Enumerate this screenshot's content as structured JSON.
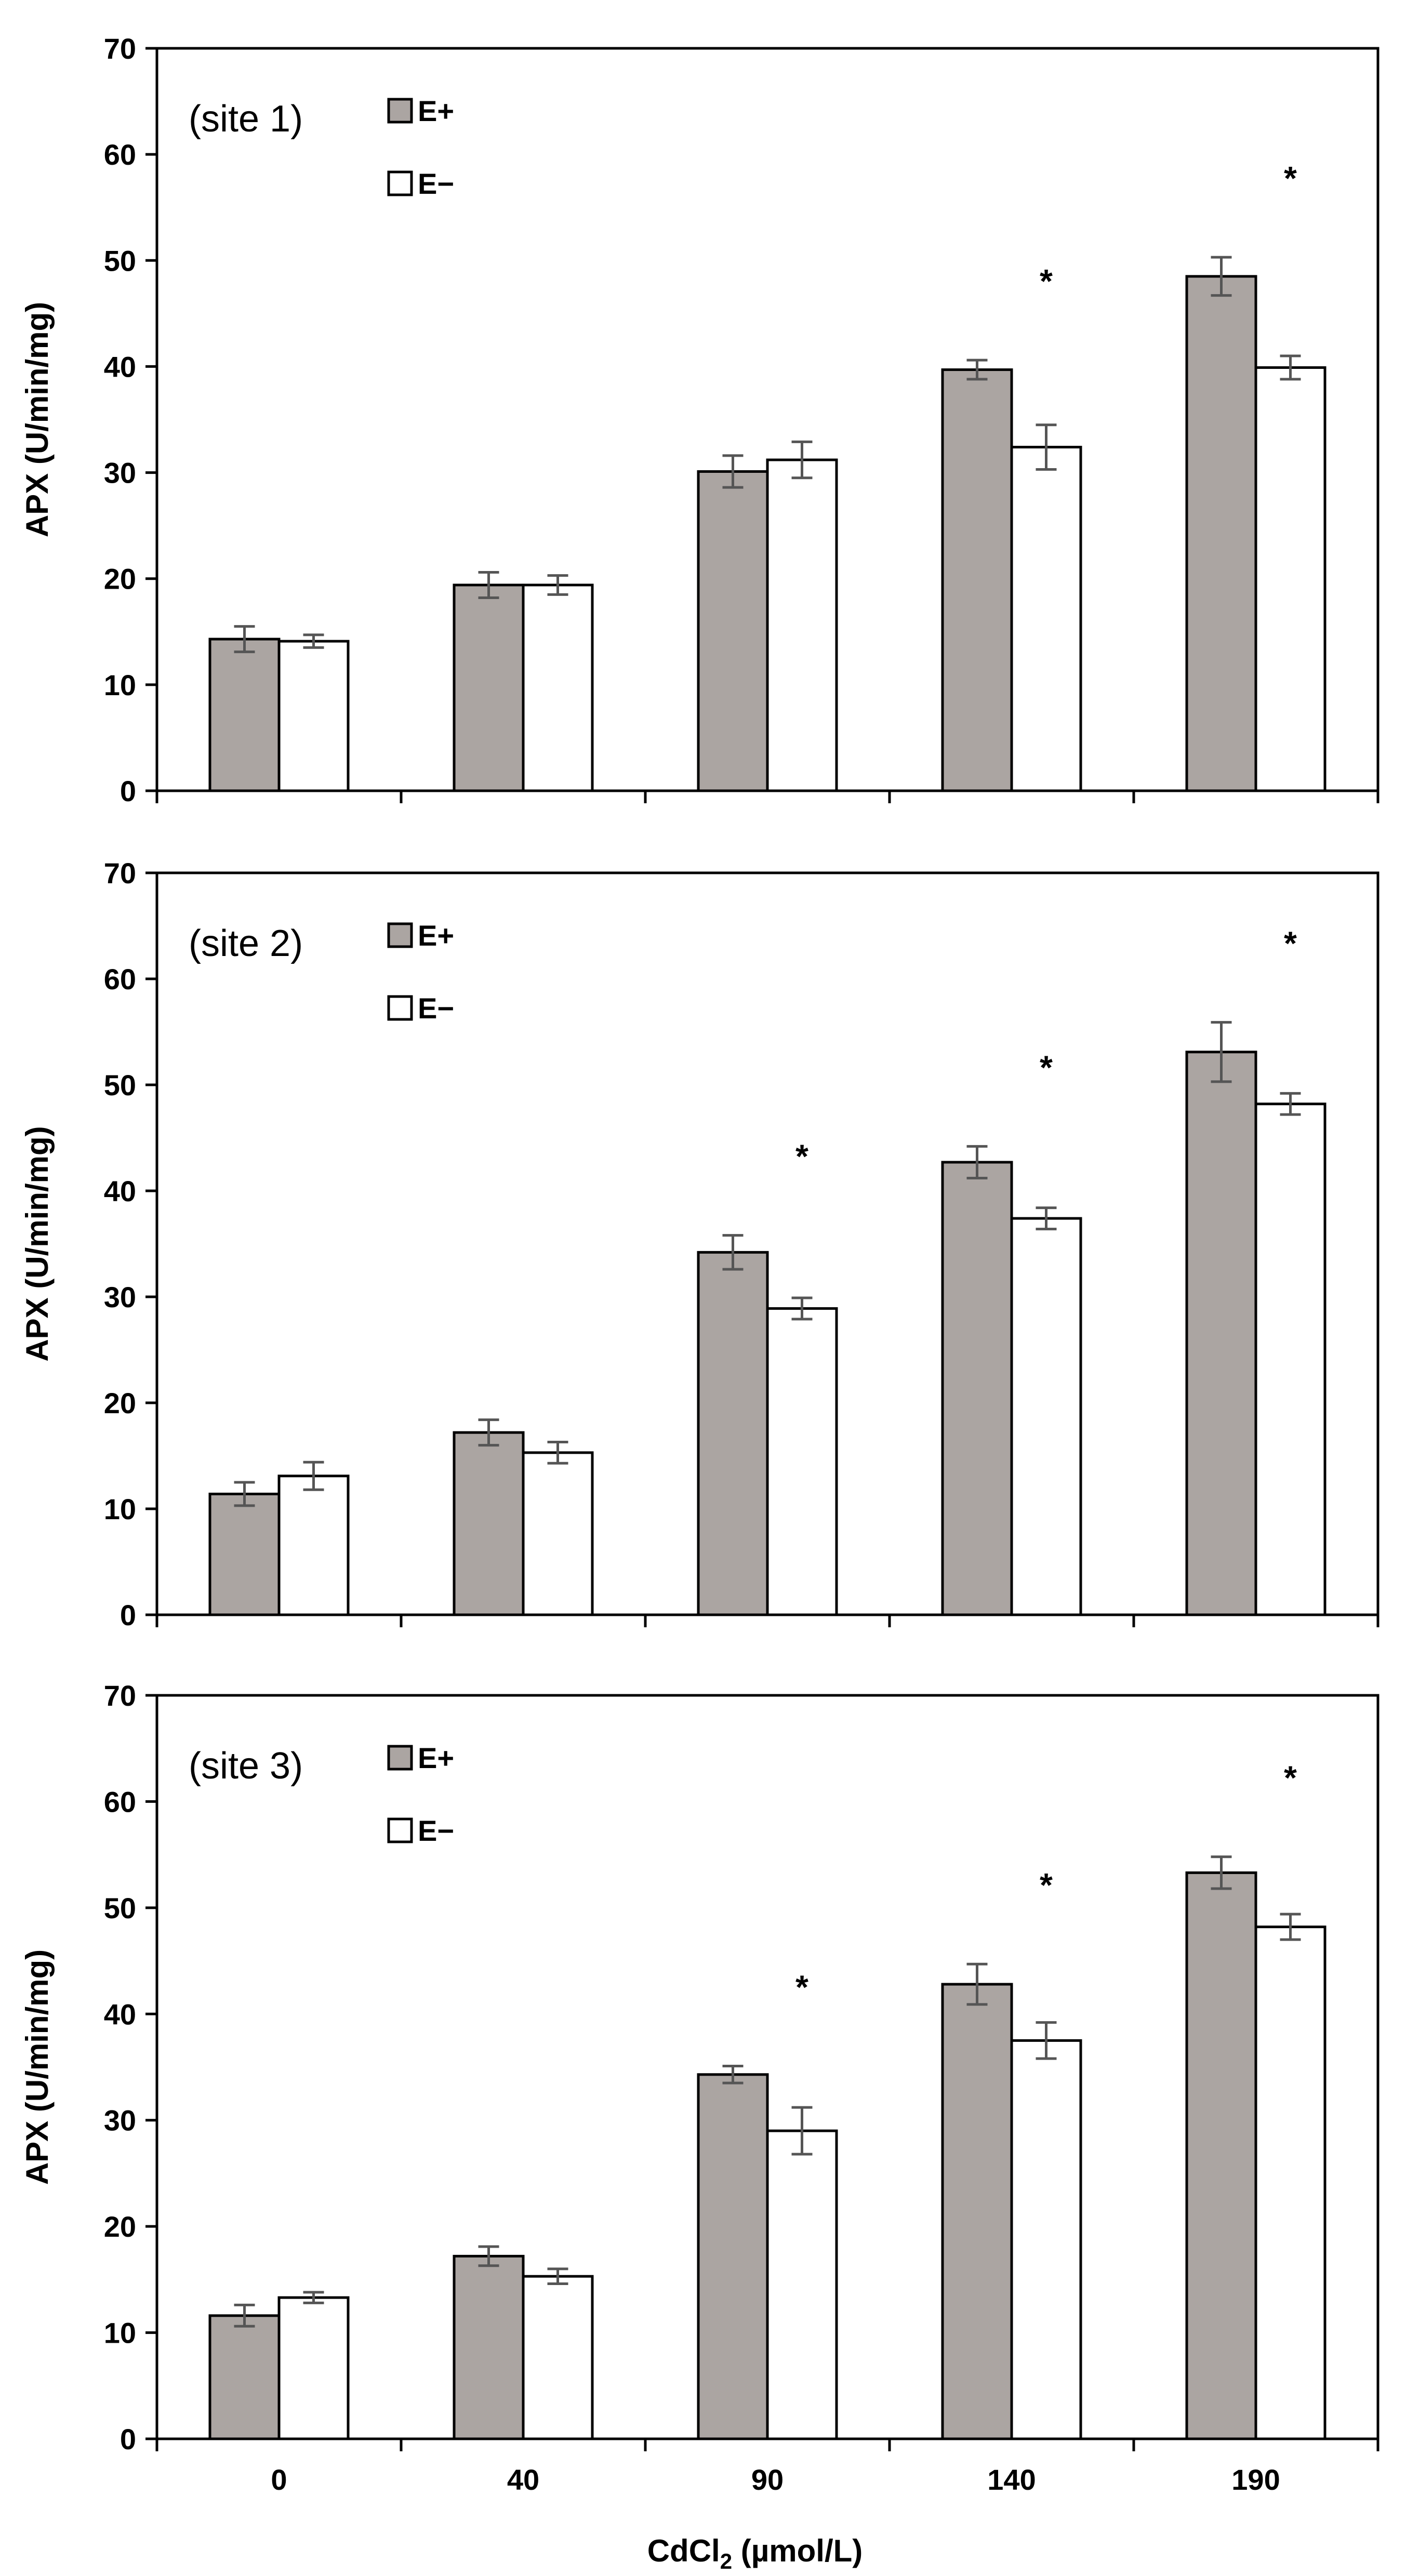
{
  "chart_data": [
    {
      "type": "bar",
      "title": "(site 1)",
      "categories": [
        "0",
        "40",
        "90",
        "140",
        "190"
      ],
      "series": [
        {
          "name": "E+",
          "color": "#aba5a2",
          "values": [
            14.3,
            19.4,
            30.1,
            39.7,
            48.5
          ],
          "errors": [
            1.2,
            1.2,
            1.5,
            0.9,
            1.8
          ]
        },
        {
          "name": "E−",
          "color": "#ffffff",
          "values": [
            14.1,
            19.4,
            31.2,
            32.4,
            39.9
          ],
          "errors": [
            0.6,
            0.9,
            1.7,
            2.1,
            1.1
          ]
        }
      ],
      "significance": [
        "",
        "",
        "",
        "*",
        "*"
      ],
      "ylabel": "APX (U/min/mg)",
      "ylim": [
        0,
        70
      ],
      "yticks": [
        "0",
        "10",
        "20",
        "30",
        "40",
        "50",
        "60",
        "70"
      ],
      "legend_position": "top-left",
      "grid": false
    },
    {
      "type": "bar",
      "title": "(site 2)",
      "categories": [
        "0",
        "40",
        "90",
        "140",
        "190"
      ],
      "series": [
        {
          "name": "E+",
          "color": "#aba5a2",
          "values": [
            11.4,
            17.2,
            34.2,
            42.7,
            53.1
          ],
          "errors": [
            1.1,
            1.2,
            1.6,
            1.5,
            2.8
          ]
        },
        {
          "name": "E−",
          "color": "#ffffff",
          "values": [
            13.1,
            15.3,
            28.9,
            37.4,
            48.2
          ],
          "errors": [
            1.3,
            1.0,
            1.0,
            1.0,
            1.0
          ]
        }
      ],
      "significance": [
        "",
        "",
        "*",
        "*",
        "*"
      ],
      "ylabel": "APX (U/min/mg)",
      "ylim": [
        0,
        70
      ],
      "yticks": [
        "0",
        "10",
        "20",
        "30",
        "40",
        "50",
        "60",
        "70"
      ],
      "legend_position": "top-left",
      "grid": false
    },
    {
      "type": "bar",
      "title": "(site 3)",
      "categories": [
        "0",
        "40",
        "90",
        "140",
        "190"
      ],
      "series": [
        {
          "name": "E+",
          "color": "#aba5a2",
          "values": [
            11.6,
            17.2,
            34.3,
            42.8,
            53.3
          ],
          "errors": [
            1.0,
            0.9,
            0.8,
            1.9,
            1.5
          ]
        },
        {
          "name": "E−",
          "color": "#ffffff",
          "values": [
            13.3,
            15.3,
            29.0,
            37.5,
            48.2
          ],
          "errors": [
            0.5,
            0.7,
            2.2,
            1.7,
            1.2
          ]
        }
      ],
      "significance": [
        "",
        "",
        "*",
        "*",
        "*"
      ],
      "ylabel": "APX (U/min/mg)",
      "ylim": [
        0,
        70
      ],
      "yticks": [
        "0",
        "10",
        "20",
        "30",
        "40",
        "50",
        "60",
        "70"
      ],
      "legend_position": "top-left",
      "grid": false
    }
  ],
  "x_axis": {
    "label_main": "CdCl",
    "label_sub": "2",
    "label_unit": " (µmol/L)"
  },
  "colors": {
    "axis": "#000000",
    "error_bar": "#555555",
    "bar_outline": "#000000"
  }
}
